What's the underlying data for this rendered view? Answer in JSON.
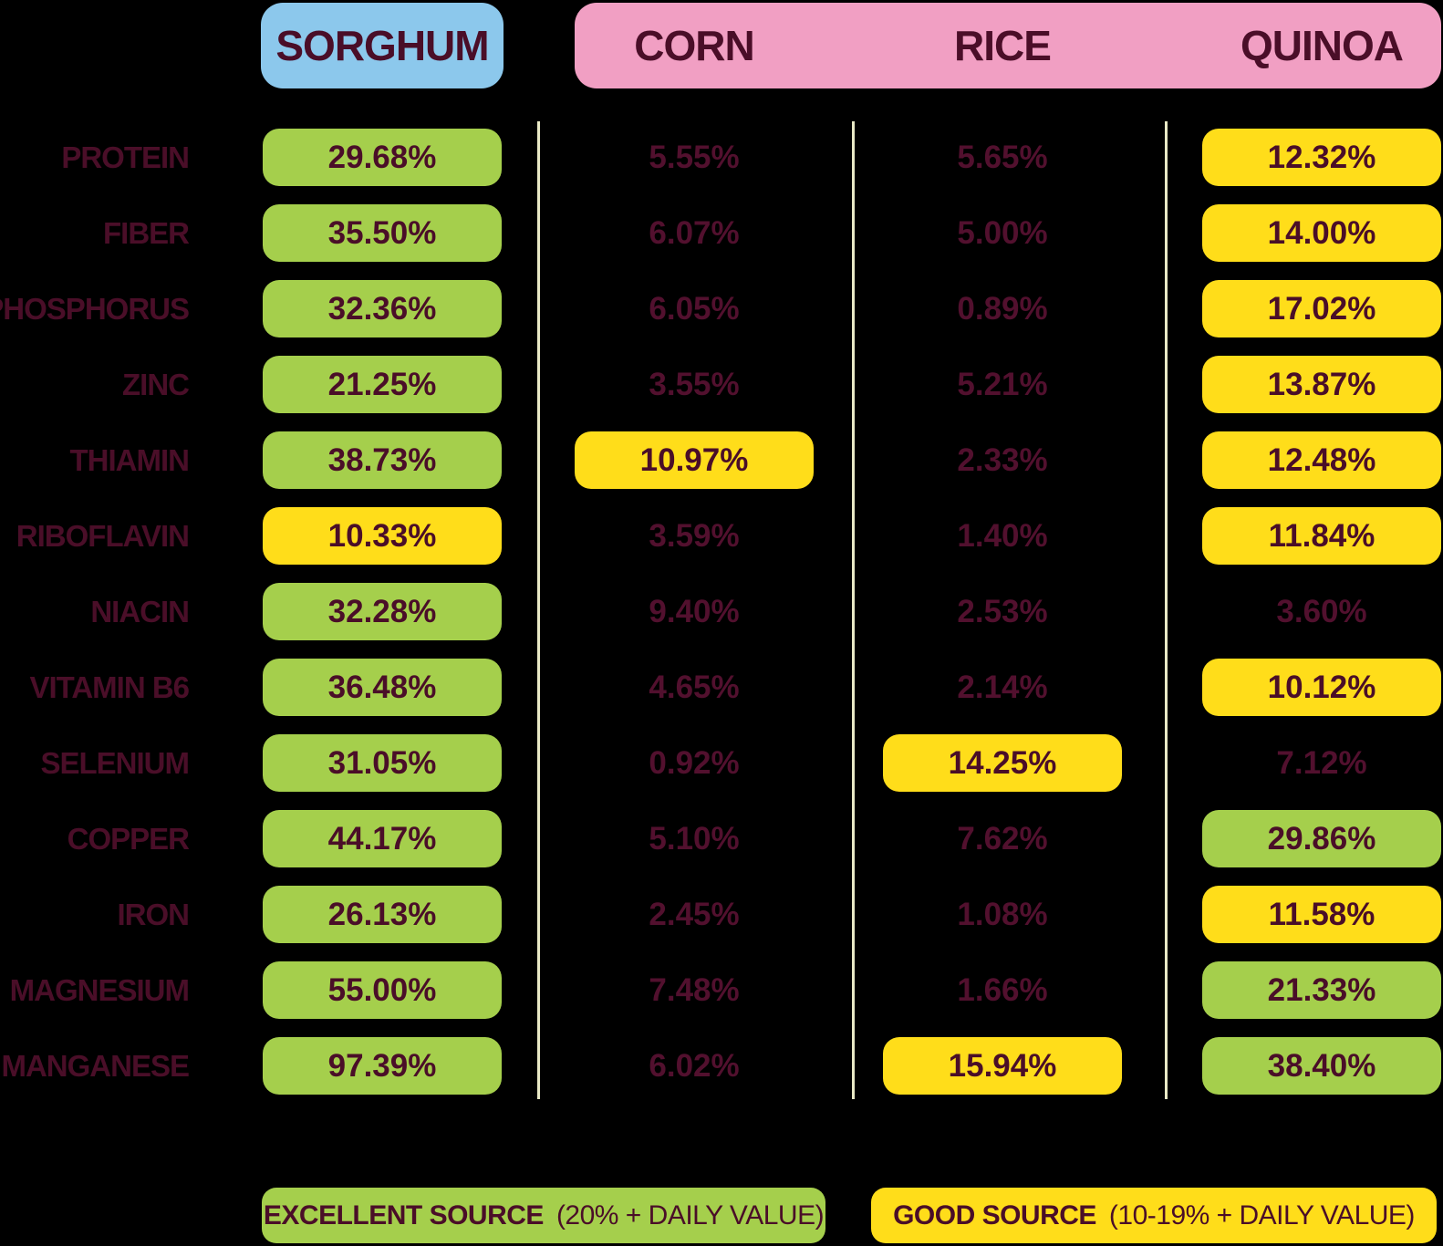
{
  "columns": [
    {
      "id": "sorghum",
      "label": "SORGHUM"
    },
    {
      "id": "corn",
      "label": "CORN"
    },
    {
      "id": "rice",
      "label": "RICE"
    },
    {
      "id": "quinoa",
      "label": "QUINOA"
    }
  ],
  "rows": [
    {
      "label": "PROTEIN",
      "values": [
        {
          "text": "29.68%",
          "level": "excellent"
        },
        {
          "text": "5.55%",
          "level": "none"
        },
        {
          "text": "5.65%",
          "level": "none"
        },
        {
          "text": "12.32%",
          "level": "good"
        }
      ]
    },
    {
      "label": "FIBER",
      "values": [
        {
          "text": "35.50%",
          "level": "excellent"
        },
        {
          "text": "6.07%",
          "level": "none"
        },
        {
          "text": "5.00%",
          "level": "none"
        },
        {
          "text": "14.00%",
          "level": "good"
        }
      ]
    },
    {
      "label": "PHOSPHORUS",
      "values": [
        {
          "text": "32.36%",
          "level": "excellent"
        },
        {
          "text": "6.05%",
          "level": "none"
        },
        {
          "text": "0.89%",
          "level": "none"
        },
        {
          "text": "17.02%",
          "level": "good"
        }
      ]
    },
    {
      "label": "ZINC",
      "values": [
        {
          "text": "21.25%",
          "level": "excellent"
        },
        {
          "text": "3.55%",
          "level": "none"
        },
        {
          "text": "5.21%",
          "level": "none"
        },
        {
          "text": "13.87%",
          "level": "good"
        }
      ]
    },
    {
      "label": "THIAMIN",
      "values": [
        {
          "text": "38.73%",
          "level": "excellent"
        },
        {
          "text": "10.97%",
          "level": "good"
        },
        {
          "text": "2.33%",
          "level": "none"
        },
        {
          "text": "12.48%",
          "level": "good"
        }
      ]
    },
    {
      "label": "RIBOFLAVIN",
      "values": [
        {
          "text": "10.33%",
          "level": "good"
        },
        {
          "text": "3.59%",
          "level": "none"
        },
        {
          "text": "1.40%",
          "level": "none"
        },
        {
          "text": "11.84%",
          "level": "good"
        }
      ]
    },
    {
      "label": "NIACIN",
      "values": [
        {
          "text": "32.28%",
          "level": "excellent"
        },
        {
          "text": "9.40%",
          "level": "none"
        },
        {
          "text": "2.53%",
          "level": "none"
        },
        {
          "text": "3.60%",
          "level": "none"
        }
      ]
    },
    {
      "label": "VITAMIN B6",
      "values": [
        {
          "text": "36.48%",
          "level": "excellent"
        },
        {
          "text": "4.65%",
          "level": "none"
        },
        {
          "text": "2.14%",
          "level": "none"
        },
        {
          "text": "10.12%",
          "level": "good"
        }
      ]
    },
    {
      "label": "SELENIUM",
      "values": [
        {
          "text": "31.05%",
          "level": "excellent"
        },
        {
          "text": "0.92%",
          "level": "none"
        },
        {
          "text": "14.25%",
          "level": "good"
        },
        {
          "text": "7.12%",
          "level": "none"
        }
      ]
    },
    {
      "label": "COPPER",
      "values": [
        {
          "text": "44.17%",
          "level": "excellent"
        },
        {
          "text": "5.10%",
          "level": "none"
        },
        {
          "text": "7.62%",
          "level": "none"
        },
        {
          "text": "29.86%",
          "level": "excellent"
        }
      ]
    },
    {
      "label": "IRON",
      "values": [
        {
          "text": "26.13%",
          "level": "excellent"
        },
        {
          "text": "2.45%",
          "level": "none"
        },
        {
          "text": "1.08%",
          "level": "none"
        },
        {
          "text": "11.58%",
          "level": "good"
        }
      ]
    },
    {
      "label": "MAGNESIUM",
      "values": [
        {
          "text": "55.00%",
          "level": "excellent"
        },
        {
          "text": "7.48%",
          "level": "none"
        },
        {
          "text": "1.66%",
          "level": "none"
        },
        {
          "text": "21.33%",
          "level": "excellent"
        }
      ]
    },
    {
      "label": "MANGANESE",
      "values": [
        {
          "text": "97.39%",
          "level": "excellent"
        },
        {
          "text": "6.02%",
          "level": "none"
        },
        {
          "text": "15.94%",
          "level": "good"
        },
        {
          "text": "38.40%",
          "level": "excellent"
        }
      ]
    }
  ],
  "legend": [
    {
      "label": "EXCELLENT SOURCE",
      "detail": "(20% + DAILY VALUE)",
      "level": "excellent"
    },
    {
      "label": "GOOD SOURCE",
      "detail": "(10-19% + DAILY VALUE)",
      "level": "good"
    }
  ],
  "colors": {
    "excellent": "#A5CF4C",
    "good": "#FFDD1A",
    "sorghum_header": "#8CC8EC",
    "grain_header": "#F19FC3",
    "text": "#4A0E28",
    "text_dim": "#52102E",
    "separator": "#E9E9C6",
    "background": "#000000"
  },
  "chart_data": {
    "type": "table",
    "title": "",
    "units": "% daily value",
    "categories": [
      "PROTEIN",
      "FIBER",
      "PHOSPHORUS",
      "ZINC",
      "THIAMIN",
      "RIBOFLAVIN",
      "NIACIN",
      "VITAMIN B6",
      "SELENIUM",
      "COPPER",
      "IRON",
      "MAGNESIUM",
      "MANGANESE"
    ],
    "series": [
      {
        "name": "SORGHUM",
        "values": [
          29.68,
          35.5,
          32.36,
          21.25,
          38.73,
          10.33,
          32.28,
          36.48,
          31.05,
          44.17,
          26.13,
          55.0,
          97.39
        ]
      },
      {
        "name": "CORN",
        "values": [
          5.55,
          6.07,
          6.05,
          3.55,
          10.97,
          3.59,
          9.4,
          4.65,
          0.92,
          5.1,
          2.45,
          7.48,
          6.02
        ]
      },
      {
        "name": "RICE",
        "values": [
          5.65,
          5.0,
          0.89,
          5.21,
          2.33,
          1.4,
          2.53,
          2.14,
          14.25,
          7.62,
          1.08,
          1.66,
          15.94
        ]
      },
      {
        "name": "QUINOA",
        "values": [
          12.32,
          14.0,
          17.02,
          13.87,
          12.48,
          11.84,
          3.6,
          10.12,
          7.12,
          29.86,
          11.58,
          21.33,
          38.4
        ]
      }
    ],
    "highlight_rules": {
      "excellent": "20% + daily value (green)",
      "good": "10-19% + daily value (yellow)"
    },
    "legend_position": "bottom"
  }
}
